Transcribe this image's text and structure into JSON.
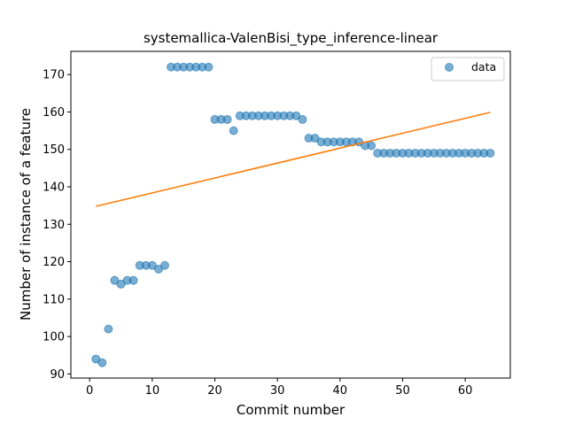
{
  "chart_data": {
    "type": "scatter",
    "title": "systemallica-ValenBisi_type_inference-linear",
    "xlabel": "Commit number",
    "ylabel": "Number of instance of a feature",
    "xlim": [
      -3,
      67.2
    ],
    "ylim": [
      88.9,
      176.2
    ],
    "xticks": [
      0,
      10,
      20,
      30,
      40,
      50,
      60
    ],
    "yticks": [
      90,
      100,
      110,
      120,
      130,
      140,
      150,
      160,
      170
    ],
    "grid": false,
    "legend_position": "top-right",
    "series": [
      {
        "name": "data",
        "kind": "scatter",
        "color": "#1f77b4",
        "x": [
          1,
          2,
          3,
          4,
          5,
          6,
          7,
          8,
          9,
          10,
          11,
          12,
          13,
          14,
          15,
          16,
          17,
          18,
          19,
          20,
          21,
          22,
          23,
          24,
          25,
          26,
          27,
          28,
          29,
          30,
          31,
          32,
          33,
          34,
          35,
          36,
          37,
          38,
          39,
          40,
          41,
          42,
          43,
          44,
          45,
          46,
          47,
          48,
          49,
          50,
          51,
          52,
          53,
          54,
          55,
          56,
          57,
          58,
          59,
          60,
          61,
          62,
          63,
          64
        ],
        "y": [
          94,
          93,
          102,
          115,
          114,
          115,
          115,
          119,
          119,
          119,
          118,
          119,
          172,
          172,
          172,
          172,
          172,
          172,
          172,
          158,
          158,
          158,
          155,
          159,
          159,
          159,
          159,
          159,
          159,
          159,
          159,
          159,
          159,
          158,
          153,
          153,
          152,
          152,
          152,
          152,
          152,
          152,
          152,
          151,
          151,
          149,
          149,
          149,
          149,
          149,
          149,
          149,
          149,
          149,
          149,
          149,
          149,
          149,
          149,
          149,
          149,
          149,
          149,
          149
        ]
      },
      {
        "kind": "line",
        "color": "#ff7f0e",
        "x": [
          1,
          64
        ],
        "y": [
          134.8,
          159.9
        ]
      }
    ]
  }
}
